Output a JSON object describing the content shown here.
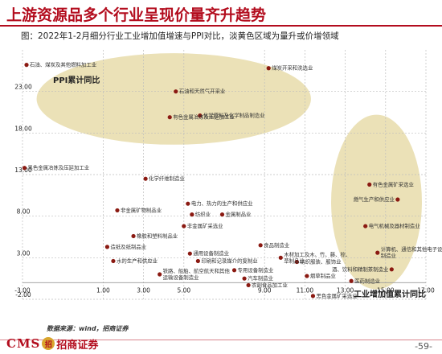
{
  "header": {
    "title": "上游资源品多个行业呈现价量齐升趋势",
    "subtitle": "图：2022年1-2月细分行业工业增加值增速与PPI对比，淡黄色区域为量升或价增领域"
  },
  "footer": {
    "source": "数据来源：wind，招商证券",
    "logo_text": "CMS",
    "logo_mark": "招",
    "logo_cn": "招商证券",
    "page": "-59-"
  },
  "colors": {
    "accent": "#b30d1e",
    "point": "#8b1a12",
    "highlight": "#e3d59b",
    "grid": "#bdbdbd",
    "axis_label": "#222222"
  },
  "chart_data": {
    "type": "scatter",
    "title": "",
    "xlabel": "工业增加值累计同比",
    "ylabel": "PPI累计同比",
    "xlim": [
      -3,
      17
    ],
    "ylim": [
      -2,
      28
    ],
    "x_ticks": [
      "-3.00",
      "1.00",
      "3.00",
      "5.00",
      "9.00",
      "11.00",
      "13.00",
      "15.00",
      "17.00"
    ],
    "y_ticks": [
      "-2.00",
      "3.00",
      "8.00",
      "13.00",
      "18.00",
      "23.00"
    ],
    "grid": true,
    "highlight_regions": [
      {
        "x": [
          -2.3,
          11.3
        ],
        "y": [
          16.6,
          27.6
        ]
      },
      {
        "x": [
          12.3,
          16.8
        ],
        "y": [
          -0.8,
          20.2
        ]
      }
    ],
    "points": [
      {
        "label": "石油、煤炭及其他燃料加工业",
        "x": -2.8,
        "y": 26.2
      },
      {
        "label": "石油和天然气开采业",
        "x": 4.6,
        "y": 23.0
      },
      {
        "label": "煤炭开采和洗选业",
        "x": 9.2,
        "y": 25.8
      },
      {
        "label": "有色金属冶炼及压延加工业",
        "x": 4.3,
        "y": 19.9
      },
      {
        "label": "化学原料及化学制品制造业",
        "x": 5.8,
        "y": 20.1
      },
      {
        "label": "黑色金属冶炼及压延加工业",
        "x": -2.9,
        "y": 13.8
      },
      {
        "label": "化学纤维制造业",
        "x": 3.1,
        "y": 12.5
      },
      {
        "label": "电力、热力的生产和供应业",
        "x": 5.2,
        "y": 9.5
      },
      {
        "label": "非金属矿物制品业",
        "x": 1.7,
        "y": 8.7
      },
      {
        "label": "纺织业",
        "x": 5.4,
        "y": 8.2
      },
      {
        "label": "金属制品业",
        "x": 6.9,
        "y": 8.2
      },
      {
        "label": "非金属矿采选业",
        "x": 5.0,
        "y": 6.8
      },
      {
        "label": "有色金属矿采选业",
        "x": 14.2,
        "y": 11.8
      },
      {
        "label": "燃气生产和供应业",
        "x": 15.6,
        "y": 10.0
      },
      {
        "label": "电气机械及器材制造业",
        "x": 14.0,
        "y": 6.8
      },
      {
        "label": "橡胶和塑料制品业",
        "x": 2.5,
        "y": 5.6
      },
      {
        "label": "造纸及纸制品业",
        "x": 1.2,
        "y": 4.3
      },
      {
        "label": "食品制造业",
        "x": 8.8,
        "y": 4.5
      },
      {
        "label": "水的生产和供应业",
        "x": 1.5,
        "y": 2.6
      },
      {
        "label": "通用设备制造业",
        "x": 5.3,
        "y": 3.5
      },
      {
        "label": "印刷和记录媒介的复制业",
        "x": 5.7,
        "y": 2.6
      },
      {
        "label": "木材加工及木、竹、藤、棕、草制品业",
        "x": 9.8,
        "y": 3.0
      },
      {
        "label": "纺织服装、服饰业",
        "x": 10.6,
        "y": 2.5
      },
      {
        "label": "计算机、通信和其他电子设备制造业",
        "x": 14.6,
        "y": 3.6
      },
      {
        "label": "铁路、船舶、航空航天和其他运输设备制造业",
        "x": 3.8,
        "y": 1.0
      },
      {
        "label": "专用设备制造业",
        "x": 7.5,
        "y": 1.5
      },
      {
        "label": "烟草制品业",
        "x": 11.1,
        "y": 0.8
      },
      {
        "label": "酒、饮料和精制茶制造业",
        "x": 15.3,
        "y": 1.6
      },
      {
        "label": "汽车制造业",
        "x": 8.0,
        "y": 0.5
      },
      {
        "label": "医药制造业",
        "x": 13.3,
        "y": 0.2
      },
      {
        "label": "农副食品加工业",
        "x": 8.2,
        "y": -0.3
      },
      {
        "label": "黑色金属矿采选业",
        "x": 11.4,
        "y": -1.6
      }
    ]
  }
}
